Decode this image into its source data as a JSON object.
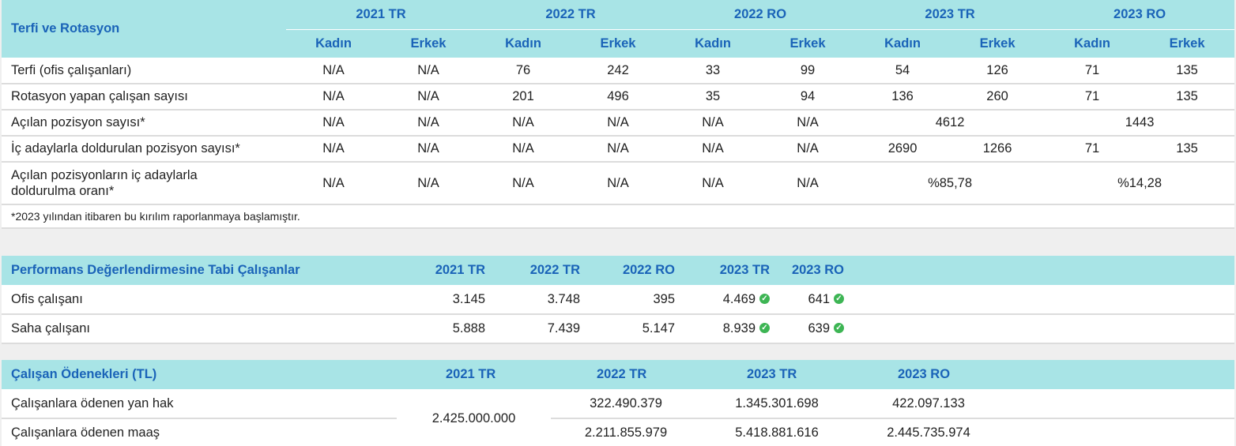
{
  "promotion": {
    "title": "Terfi ve Rotasyon",
    "years": [
      "2021 TR",
      "2022 TR",
      "2022 RO",
      "2023 TR",
      "2023 RO"
    ],
    "gender_female": "Kadın",
    "gender_male": "Erkek",
    "rows": [
      {
        "label": "Terfi (ofis çalışanları)",
        "values": [
          "N/A",
          "N/A",
          "76",
          "242",
          "33",
          "99",
          "54",
          "126",
          "71",
          "135"
        ]
      },
      {
        "label": "Rotasyon yapan çalışan sayısı",
        "values": [
          "N/A",
          "N/A",
          "201",
          "496",
          "35",
          "94",
          "136",
          "260",
          "71",
          "135"
        ]
      },
      {
        "label": "Açılan pozisyon sayısı*",
        "values": [
          "N/A",
          "N/A",
          "N/A",
          "N/A",
          "N/A",
          "N/A"
        ],
        "tr2023": "4612",
        "ro2023": "1443"
      },
      {
        "label": "İç adaylarla doldurulan pozisyon sayısı*",
        "values": [
          "N/A",
          "N/A",
          "N/A",
          "N/A",
          "N/A",
          "N/A",
          "2690",
          "1266",
          "71",
          "135"
        ]
      },
      {
        "label_line1": "Açılan pozisyonların iç adaylarla",
        "label_line2": "doldurulma oranı*",
        "values": [
          "N/A",
          "N/A",
          "N/A",
          "N/A",
          "N/A",
          "N/A"
        ],
        "tr2023": "%85,78",
        "ro2023": "%14,28"
      }
    ],
    "note": "*2023 yılından itibaren bu kırılım raporlanmaya başlamıştır."
  },
  "performance": {
    "title": "Performans Değerlendirmesine Tabi Çalışanlar",
    "years": [
      "2021 TR",
      "2022 TR",
      "2022 RO",
      "2023 TR",
      "2023 RO"
    ],
    "rows": [
      {
        "label": "Ofis çalışanı",
        "values": [
          "3.145",
          "3.748",
          "395",
          "4.469",
          "641"
        ]
      },
      {
        "label": "Saha çalışanı",
        "values": [
          "5.888",
          "7.439",
          "5.147",
          "8.939",
          "639"
        ]
      }
    ],
    "check_icon": "✓",
    "check_color": "#3db554"
  },
  "compensation": {
    "title": "Çalışan Ödenekleri (TL)",
    "years": [
      "2021 TR",
      "2022 TR",
      "2023 TR",
      "2023 RO"
    ],
    "row1_label": "Çalışanlara ödenen yan hak",
    "row2_label": "Çalışanlara ödenen maaş",
    "merged_2021": "2.425.000.000",
    "row1_values": [
      "322.490.379",
      "1.345.301.698",
      "422.097.133"
    ],
    "row2_values": [
      "2.211.855.979",
      "5.418.881.616",
      "2.445.735.974"
    ]
  },
  "colors": {
    "header_bg": "#a8e4e6",
    "header_text": "#1a63b8",
    "check": "#3db554"
  }
}
